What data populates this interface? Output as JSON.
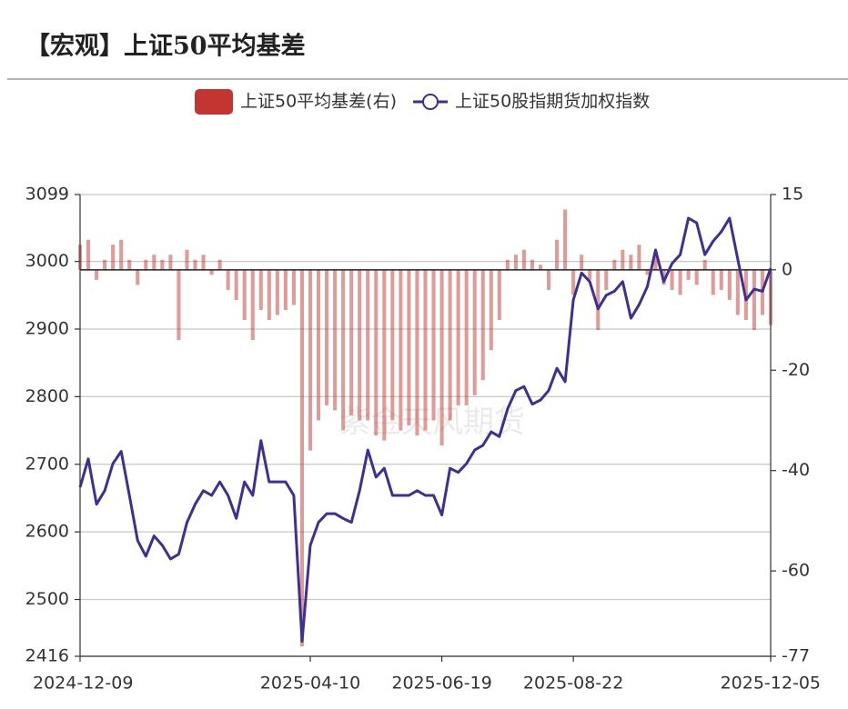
{
  "chart_data": {
    "type": "bar-line",
    "title": "【宏观】上证50平均基差",
    "watermark": "紫金天风期货",
    "categories": [
      "2024-12-09",
      null,
      null,
      null,
      null,
      null,
      null,
      null,
      null,
      null,
      null,
      null,
      null,
      null,
      null,
      null,
      null,
      null,
      null,
      null,
      null,
      null,
      null,
      null,
      null,
      null,
      null,
      null,
      "2025-04-10",
      null,
      null,
      null,
      null,
      null,
      null,
      null,
      null,
      null,
      null,
      null,
      null,
      null,
      null,
      null,
      "2025-06-19",
      null,
      null,
      null,
      null,
      null,
      null,
      null,
      null,
      null,
      null,
      null,
      null,
      null,
      null,
      null,
      "2025-08-22",
      null,
      null,
      null,
      null,
      null,
      null,
      null,
      null,
      null,
      null,
      null,
      null,
      null,
      null,
      null,
      null,
      null,
      null,
      null,
      null,
      null,
      null,
      null,
      "2025-12-05"
    ],
    "series": [
      {
        "name": "上证50平均基差(右)",
        "type": "bar",
        "axis": "y2",
        "color": "#c23531",
        "values": [
          5,
          6,
          -2,
          2,
          5,
          6,
          2,
          -3,
          2,
          3,
          2,
          3,
          -14,
          4,
          2,
          3,
          -1,
          2,
          -4,
          -6,
          -10,
          -14,
          -8,
          -10,
          -9,
          -8,
          -7,
          -75,
          -36,
          -30,
          -27,
          -28,
          -32,
          -29,
          -30,
          -30,
          -33,
          -34,
          -30,
          -32,
          -31,
          -33,
          -32,
          -30,
          -35,
          -30,
          -27,
          -27,
          -25,
          -22,
          -16,
          -10,
          2,
          3,
          4,
          2,
          1,
          -4,
          6,
          12,
          -5,
          3,
          -2,
          -12,
          -4,
          2,
          4,
          3,
          5,
          -1,
          3,
          -3,
          -4,
          -5,
          -2,
          -3,
          2,
          -5,
          -4,
          -6,
          -9,
          -10,
          -12,
          -9,
          -11
        ]
      },
      {
        "name": "上证50股指期货加权指数",
        "type": "line",
        "axis": "y",
        "color": "#3d2f94",
        "values": [
          2666,
          2708,
          2641,
          2661,
          2701,
          2719,
          2654,
          2587,
          2564,
          2594,
          2580,
          2560,
          2567,
          2614,
          2641,
          2661,
          2654,
          2674,
          2654,
          2620,
          2674,
          2654,
          2735,
          2674,
          2674,
          2674,
          2654,
          2438,
          2580,
          2614,
          2627,
          2627,
          2620,
          2614,
          2661,
          2721,
          2681,
          2694,
          2654,
          2654,
          2654,
          2661,
          2654,
          2654,
          2625,
          2694,
          2688,
          2701,
          2721,
          2728,
          2748,
          2741,
          2782,
          2809,
          2815,
          2789,
          2795,
          2809,
          2842,
          2822,
          2943,
          2983,
          2970,
          2930,
          2950,
          2956,
          2970,
          2916,
          2936,
          2963,
          3017,
          2970,
          2997,
          3010,
          3064,
          3057,
          3010,
          3030,
          3044,
          3064,
          3003,
          2943,
          2959,
          2956,
          2990
        ]
      }
    ],
    "ylim": [
      2416,
      3099
    ],
    "yticks": [
      2416,
      2500,
      2600,
      2700,
      2800,
      2900,
      3000,
      3099
    ],
    "y2lim": [
      -77,
      15
    ],
    "y2ticks": [
      -77,
      -60,
      -40,
      -20,
      0,
      15
    ],
    "grid": true
  }
}
